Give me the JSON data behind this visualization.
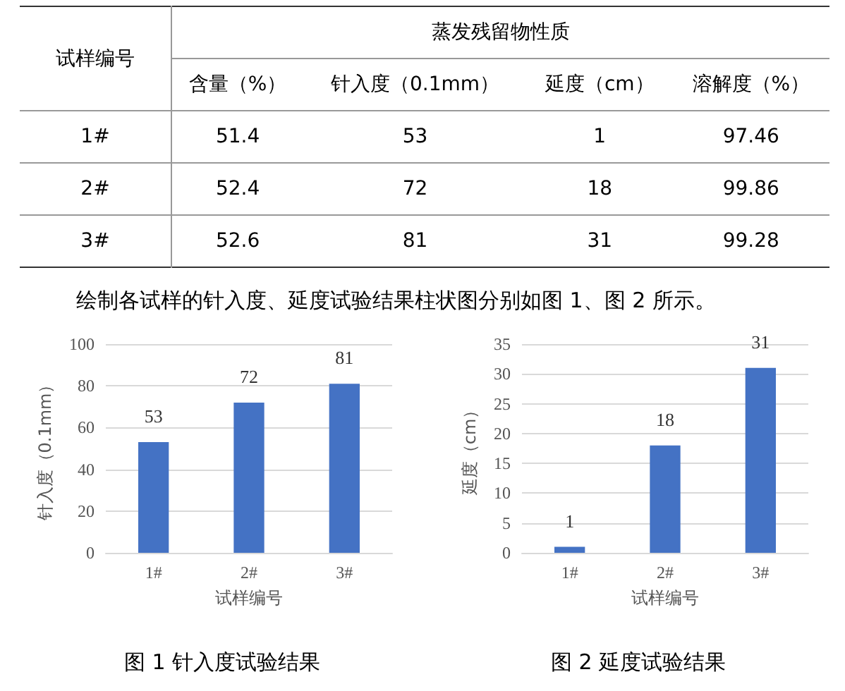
{
  "chart_data": [
    {
      "type": "other",
      "title": "蒸发残留物性质",
      "ylabel": "试样编号",
      "categories": [
        "含量（%）",
        "针入度（0.1mm）",
        "延度（cm）",
        "溶解度（%）"
      ],
      "y_categories": [
        "1#",
        "2#",
        "3#"
      ],
      "cell_labels": [
        [
          "51.4",
          "53",
          "1",
          "97.46"
        ],
        [
          "52.4",
          "72",
          "18",
          "99.86"
        ],
        [
          "52.6",
          "81",
          "31",
          "99.28"
        ]
      ],
      "annotations": [
        "绘制各试样的针入度、延度试验结果柱状图分别如图 1、图 2 所示。"
      ]
    },
    {
      "type": "bar",
      "title": "图 1 针入度试验结果",
      "categories": [
        "1#",
        "2#",
        "3#"
      ],
      "values": [
        53,
        72,
        81
      ],
      "color": "#4472c4",
      "xlabel": "试样编号",
      "ylabel": "针入度（0.1mm）",
      "ylim": [
        0,
        100
      ],
      "yticks": [
        0,
        20,
        40,
        60,
        80,
        100
      ],
      "grid": "y",
      "data_labels": true
    },
    {
      "type": "bar",
      "title": "图 2 延度试验结果",
      "categories": [
        "1#",
        "2#",
        "3#"
      ],
      "values": [
        1,
        18,
        31
      ],
      "color": "#4472c4",
      "xlabel": "试样编号",
      "ylabel": "延度（cm）",
      "ylim": [
        0,
        35
      ],
      "yticks": [
        0,
        5,
        10,
        15,
        20,
        25,
        30,
        35
      ],
      "grid": "y",
      "data_labels": true
    }
  ]
}
